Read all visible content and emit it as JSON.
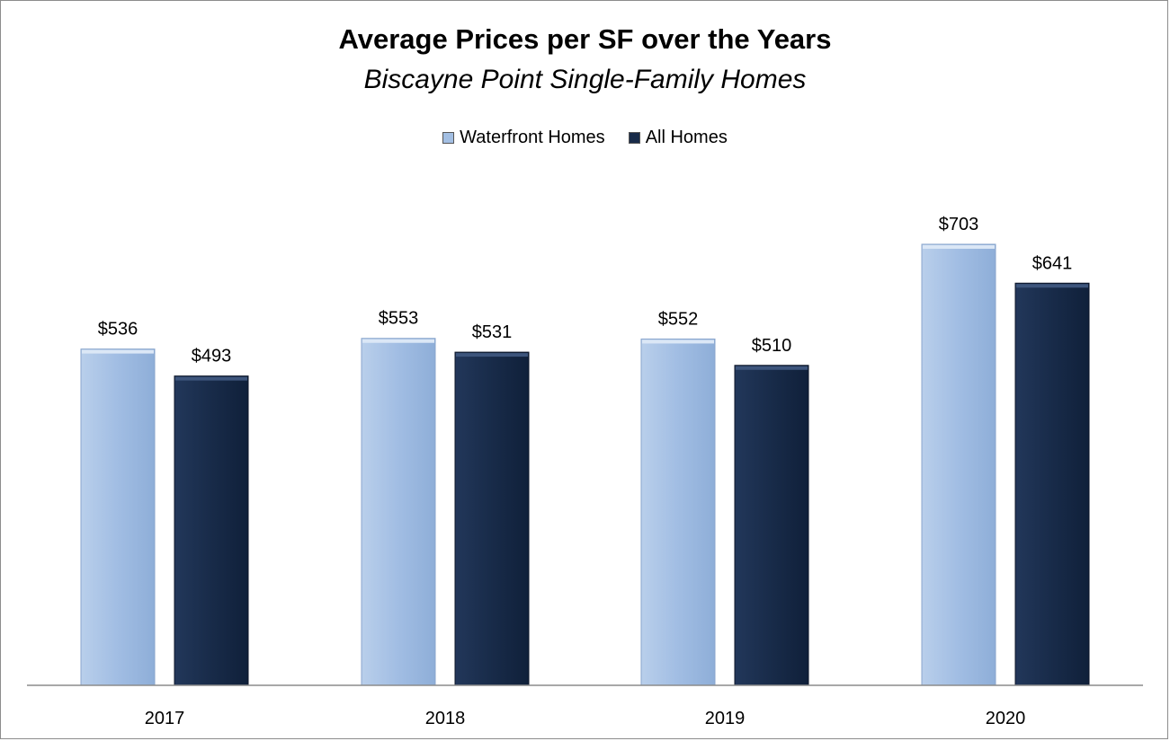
{
  "chart_data": {
    "type": "bar",
    "title": "Average Prices per SF over the Years",
    "subtitle": "Biscayne Point Single-Family Homes",
    "categories": [
      "2017",
      "2018",
      "2019",
      "2020"
    ],
    "series": [
      {
        "name": "Waterfront Homes",
        "values": [
          536,
          553,
          552,
          703
        ],
        "labels": [
          "$536",
          "$553",
          "$552",
          "$703"
        ],
        "color": "#a3bfe3"
      },
      {
        "name": "All Homes",
        "values": [
          493,
          531,
          510,
          641
        ],
        "labels": [
          "$493",
          "$531",
          "$510",
          "$641"
        ],
        "color": "#182b49"
      }
    ],
    "ylim": [
      0,
      1000
    ],
    "grid": false,
    "legend_position": "top-center",
    "xlabel": "",
    "ylabel": ""
  }
}
